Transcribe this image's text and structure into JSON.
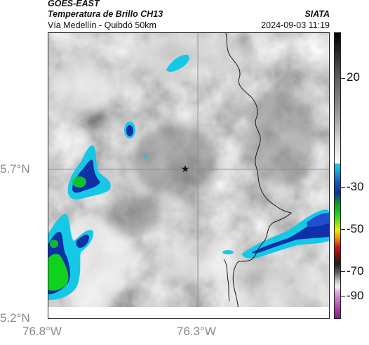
{
  "header": {
    "satellite": "GOES-EAST",
    "product": "Temperatura de Brillo CH13",
    "region": "Vía Medellín - Quibdó 50km",
    "org": "SIATA",
    "datetime": "2024-09-03 11:19"
  },
  "axes": {
    "lat_labels": [
      "5.7°N",
      "5.2°N"
    ],
    "lon_labels": [
      "76.8°W",
      "76.3°W"
    ]
  },
  "colorbar": {
    "labels": [
      "20",
      "-30",
      "-50",
      "-70",
      "-90"
    ],
    "colors": {
      "warm_gray": "#a0a0a0",
      "cyan": "#14c8e6",
      "blue": "#1030a8",
      "green": "#10d020",
      "yellow": "#e8f000",
      "red": "#d01818",
      "purple": "#b050b0"
    }
  },
  "map": {
    "marker": "star-icon"
  }
}
